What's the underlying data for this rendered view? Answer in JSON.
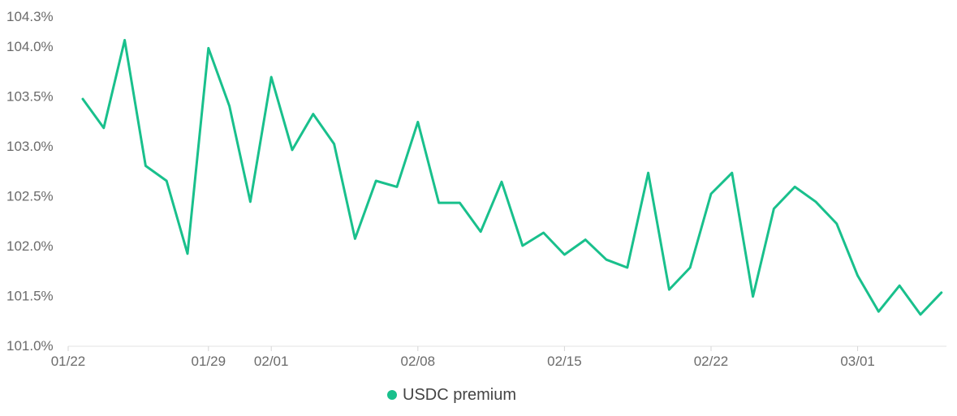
{
  "chart_data": {
    "type": "line",
    "title": "",
    "xlabel": "",
    "ylabel": "",
    "ylim": [
      101.0,
      104.3
    ],
    "y_ticks": [
      "101.0%",
      "101.5%",
      "102.0%",
      "102.5%",
      "103.0%",
      "103.5%",
      "104.0%",
      "104.3%"
    ],
    "y_tick_values": [
      101.0,
      101.5,
      102.0,
      102.5,
      103.0,
      103.5,
      104.0,
      104.3
    ],
    "x_ticks": [
      "01/22",
      "01/29",
      "02/01",
      "02/08",
      "02/15",
      "02/22",
      "03/01"
    ],
    "x_tick_index": [
      0,
      6,
      9,
      16,
      23,
      30,
      37
    ],
    "grid": false,
    "legend": "bottom-center",
    "series": [
      {
        "name": "USDC premium",
        "color": "#19c08c",
        "values": [
          103.47,
          103.18,
          104.06,
          102.8,
          102.65,
          101.92,
          103.98,
          103.4,
          102.44,
          103.69,
          102.96,
          103.32,
          103.02,
          102.07,
          102.65,
          102.59,
          103.24,
          102.43,
          102.43,
          102.14,
          102.64,
          102.0,
          102.13,
          101.91,
          102.06,
          101.86,
          101.78,
          102.73,
          101.56,
          101.78,
          102.52,
          102.73,
          101.49,
          102.37,
          102.59,
          102.44,
          102.22,
          101.7,
          101.34,
          101.6,
          101.31,
          101.53
        ]
      }
    ]
  }
}
